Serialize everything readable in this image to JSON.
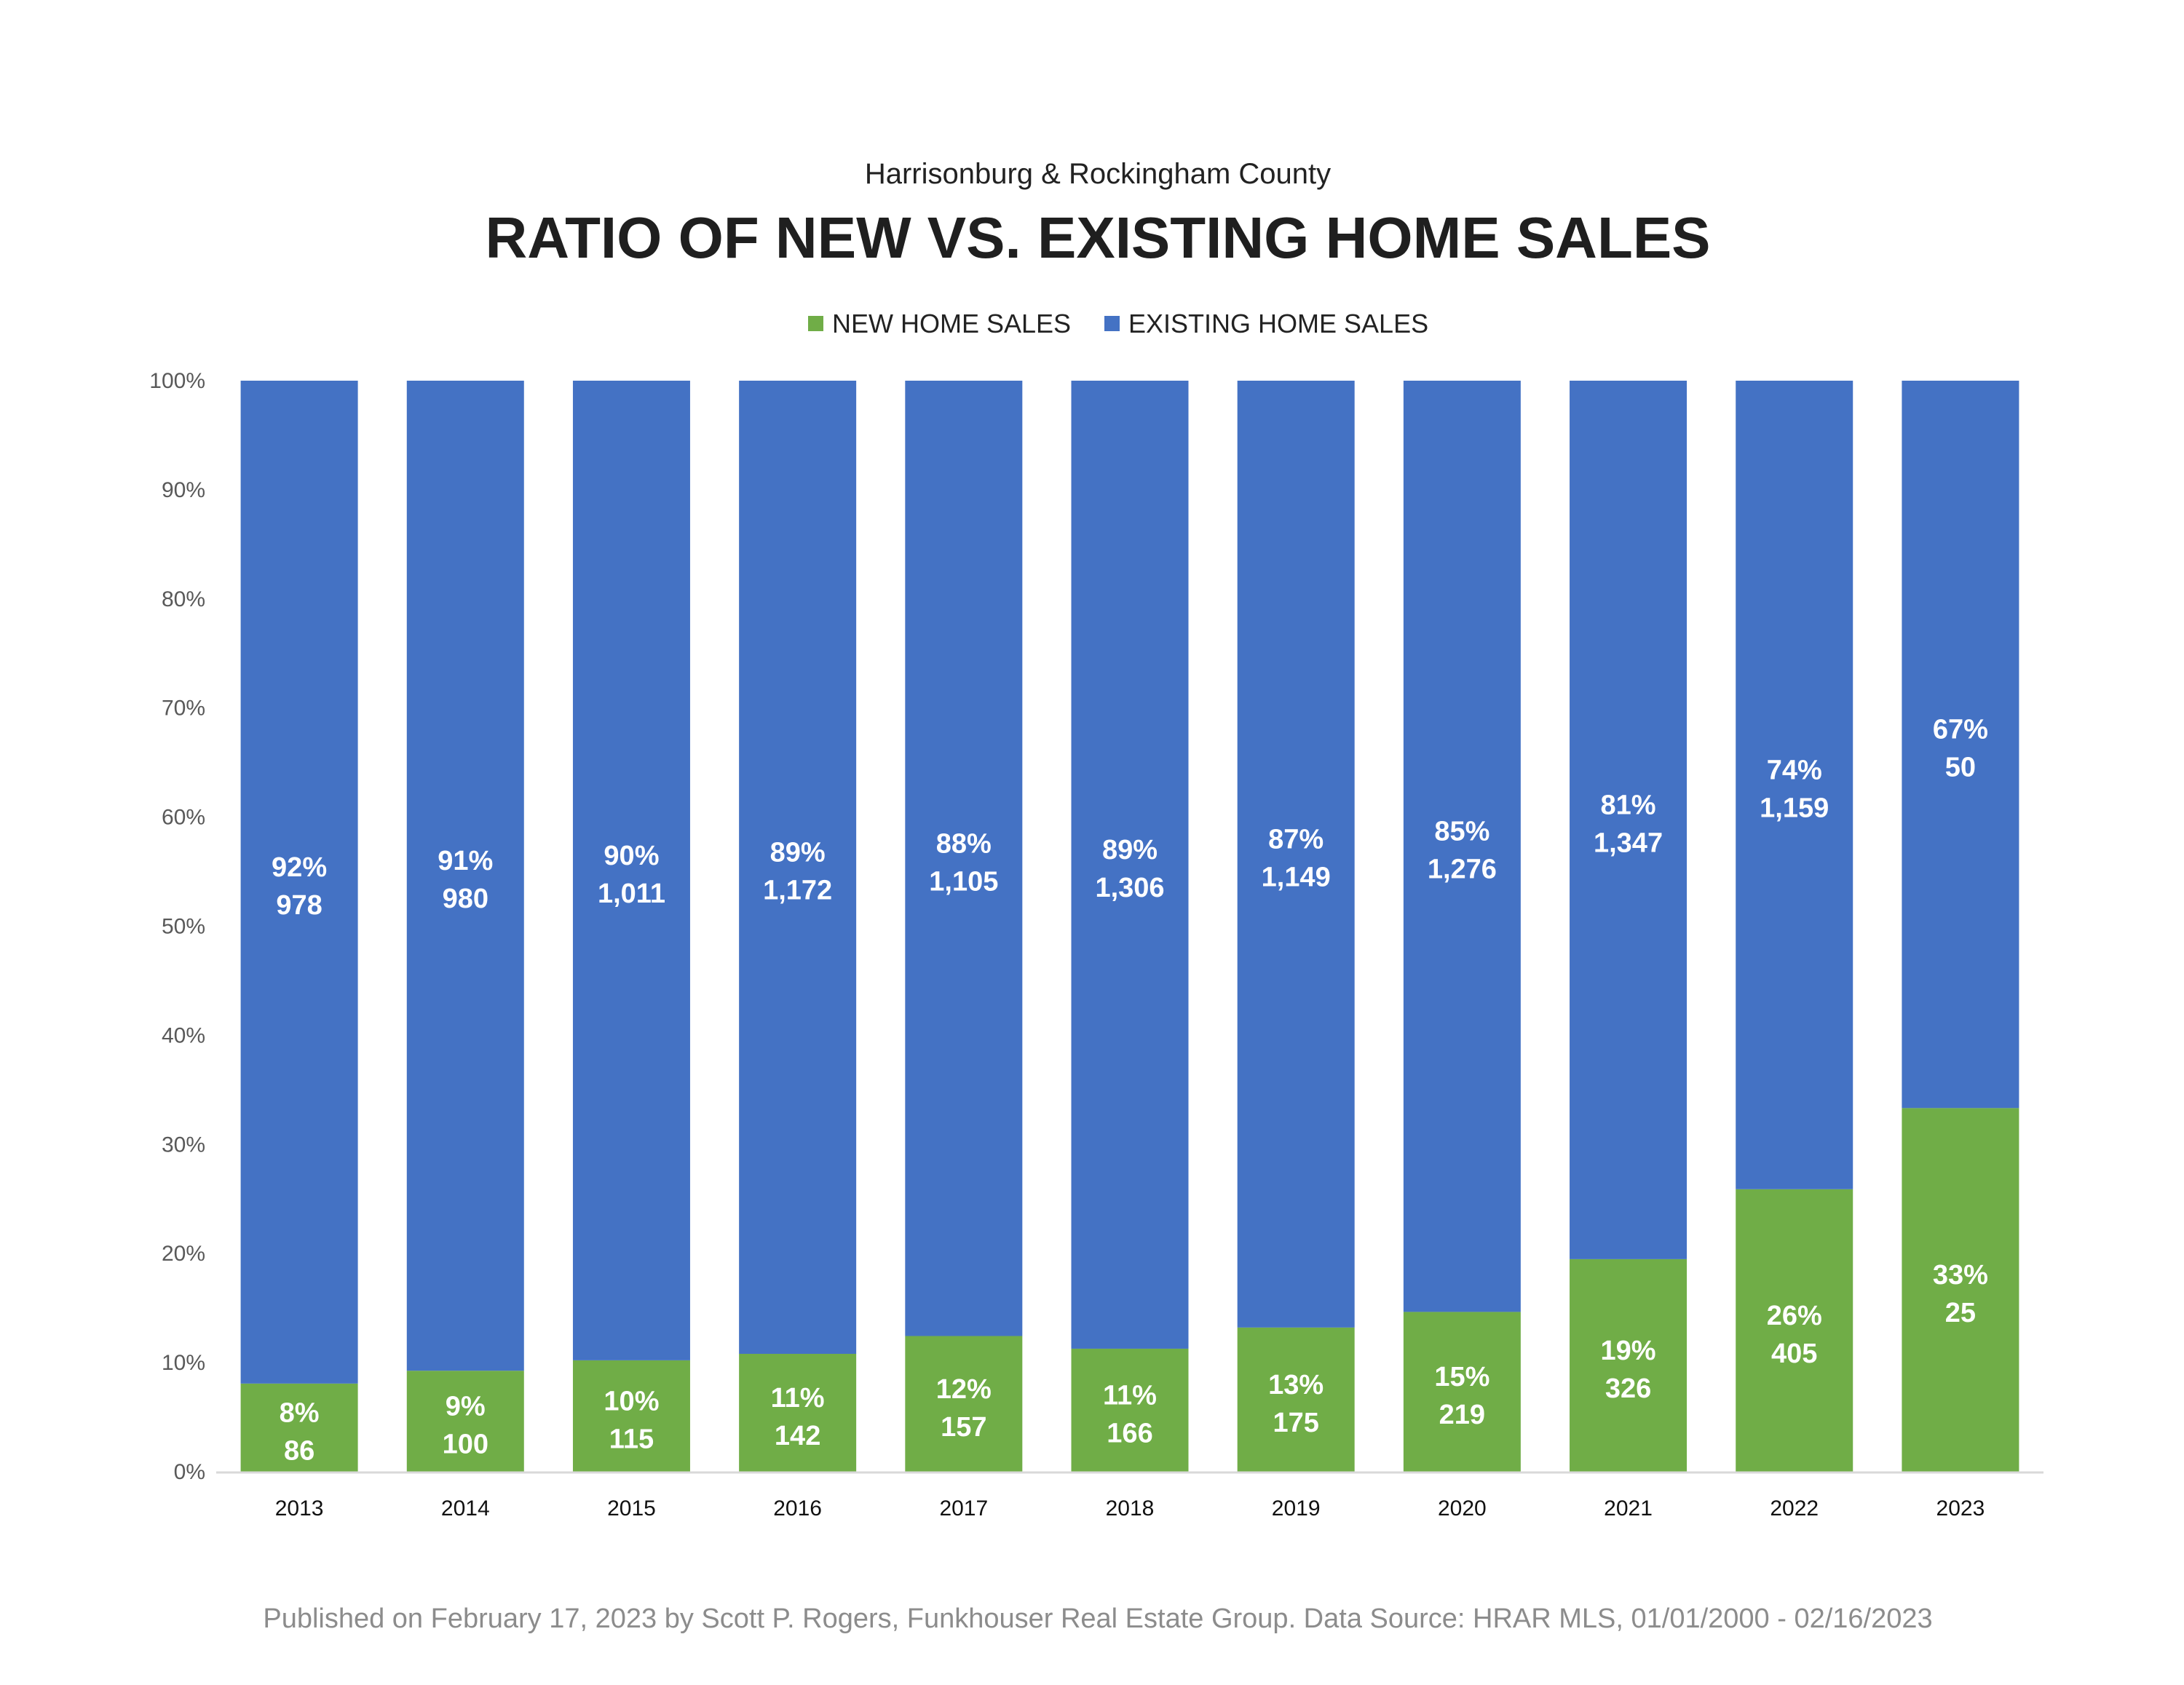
{
  "subtitle": "Harrisonburg & Rockingham County",
  "title": "RATIO OF NEW VS. EXISTING HOME SALES",
  "footer": "Published on February 17, 2023 by Scott P. Rogers, Funkhouser Real Estate Group. Data Source: HRAR MLS, 01/01/2000 - 02/16/2023",
  "chart_data": {
    "type": "bar",
    "stacked": "100%",
    "categories": [
      "2013",
      "2014",
      "2015",
      "2016",
      "2017",
      "2018",
      "2019",
      "2020",
      "2021",
      "2022",
      "2023"
    ],
    "series": [
      {
        "name": "NEW HOME SALES",
        "color": "#70AD47",
        "values": [
          86,
          100,
          115,
          142,
          157,
          166,
          175,
          219,
          326,
          405,
          25
        ],
        "percent_labels": [
          "8%",
          "9%",
          "10%",
          "11%",
          "12%",
          "11%",
          "13%",
          "15%",
          "19%",
          "26%",
          "33%"
        ],
        "count_labels": [
          "86",
          "100",
          "115",
          "142",
          "157",
          "166",
          "175",
          "219",
          "326",
          "405",
          "25"
        ]
      },
      {
        "name": "EXISTING HOME SALES",
        "color": "#4472C4",
        "values": [
          978,
          980,
          1011,
          1172,
          1105,
          1306,
          1149,
          1276,
          1347,
          1159,
          50
        ],
        "percent_labels": [
          "92%",
          "91%",
          "90%",
          "89%",
          "88%",
          "89%",
          "87%",
          "85%",
          "81%",
          "74%",
          "67%"
        ],
        "count_labels": [
          "978",
          "980",
          "1,011",
          "1,172",
          "1,105",
          "1,306",
          "1,149",
          "1,276",
          "1,347",
          "1,159",
          "50"
        ]
      }
    ],
    "yticks": [
      "0%",
      "10%",
      "20%",
      "30%",
      "40%",
      "50%",
      "60%",
      "70%",
      "80%",
      "90%",
      "100%"
    ],
    "ylim": [
      0,
      1
    ],
    "legend_position": "top-center",
    "grid": false
  }
}
